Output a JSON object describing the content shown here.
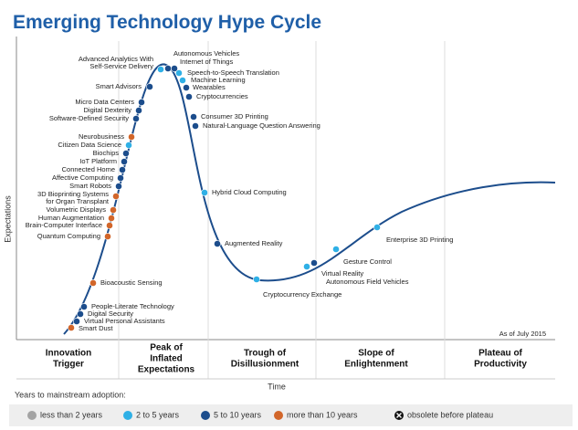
{
  "title": "Emerging Technology Hype Cycle",
  "y_axis_label": "Expectations",
  "x_axis_label": "Time",
  "note": "As of July 2015",
  "phases": [
    [
      "Innovation",
      "Trigger"
    ],
    [
      "Peak of",
      "Inflated",
      "Expectations"
    ],
    [
      "Trough of",
      "Disillusionment"
    ],
    [
      "Slope of",
      "Enlightenment"
    ],
    [
      "Plateau of",
      "Productivity"
    ]
  ],
  "legend_title": "Years to mainstream adoption:",
  "legend": [
    {
      "label": "less than 2 years",
      "color": "#a3a3a3",
      "technologies": []
    },
    {
      "label": "2 to 5 years",
      "color": "#2fb0e6",
      "technologies": [
        {
          "label": [
            "Advanced Analytics With",
            "Self-Service Delivery"
          ]
        },
        {
          "label": [
            "Speech-to-Speech Translation"
          ]
        },
        {
          "label": [
            "Machine Learning"
          ]
        },
        {
          "label": [
            "Citizen Data Science"
          ]
        },
        {
          "label": [
            "Hybrid Cloud Computing"
          ]
        },
        {
          "label": [
            "Cryptocurrency Exchange"
          ]
        },
        {
          "label": [
            "Virtual Reality"
          ]
        },
        {
          "label": [
            "Gesture Control"
          ]
        },
        {
          "label": [
            "Enterprise 3D Printing"
          ]
        }
      ]
    },
    {
      "label": "5 to 10 years",
      "color": "#1c4d8c",
      "technologies": [
        {
          "label": [
            "Autonomous Vehicles"
          ]
        },
        {
          "label": [
            "Internet of Things"
          ]
        },
        {
          "label": [
            "Wearables"
          ]
        },
        {
          "label": [
            "Cryptocurrencies"
          ]
        },
        {
          "label": [
            "Smart Advisors"
          ]
        },
        {
          "label": [
            "Micro Data Centers"
          ]
        },
        {
          "label": [
            "Digital Dexterity"
          ]
        },
        {
          "label": [
            "Software-Defined Security"
          ]
        },
        {
          "label": [
            "Biochips"
          ]
        },
        {
          "label": [
            "IoT Platform"
          ]
        },
        {
          "label": [
            "Connected Home"
          ]
        },
        {
          "label": [
            "Affective Computing"
          ]
        },
        {
          "label": [
            "Smart Robots"
          ]
        },
        {
          "label": [
            "People-Literate Technology"
          ]
        },
        {
          "label": [
            "Digital Security"
          ]
        },
        {
          "label": [
            "Virtual Personal Assistants"
          ]
        },
        {
          "label": [
            "Consumer 3D Printing"
          ]
        },
        {
          "label": [
            "Natural-Language Question Answering"
          ]
        },
        {
          "label": [
            "Augmented Reality"
          ]
        },
        {
          "label": [
            "Autonomous Field Vehicles"
          ]
        }
      ]
    },
    {
      "label": "more than 10 years",
      "color": "#d2662a",
      "technologies": [
        {
          "label": [
            "Neurobusiness"
          ]
        },
        {
          "label": [
            "3D Bioprinting Systems",
            "for Organ Transplant"
          ]
        },
        {
          "label": [
            "Volumetric Displays"
          ]
        },
        {
          "label": [
            "Human Augmentation"
          ]
        },
        {
          "label": [
            "Brain-Computer Interface"
          ]
        },
        {
          "label": [
            "Quantum Computing"
          ]
        },
        {
          "label": [
            "Bioacoustic Sensing"
          ]
        },
        {
          "label": [
            "Smart Dust"
          ]
        }
      ]
    },
    {
      "label": "obsolete before plateau",
      "color": "#111111",
      "technologies": []
    }
  ]
}
